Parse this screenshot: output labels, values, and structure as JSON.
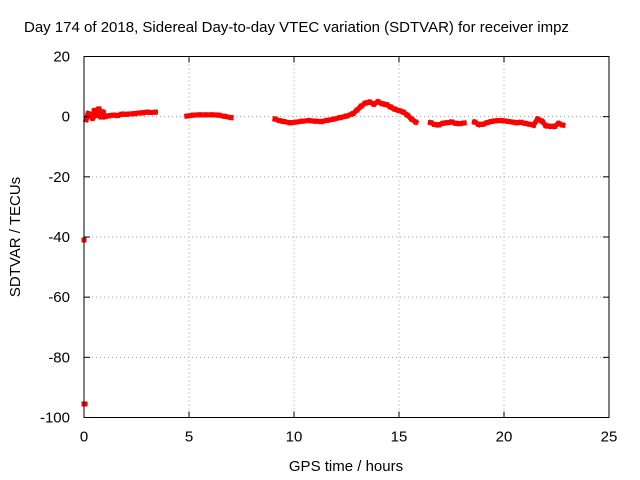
{
  "chart_data": {
    "type": "scatter",
    "title": "Day 174 of 2018, Sidereal Day-to-day VTEC variation (SDTVAR) for receiver impz",
    "xlabel": "GPS time / hours",
    "ylabel": "SDTVAR / TECUs",
    "xlim": [
      0,
      25
    ],
    "ylim": [
      -100,
      20
    ],
    "x_ticks": [
      0,
      5,
      10,
      15,
      20,
      25
    ],
    "y_ticks": [
      -100,
      -80,
      -60,
      -40,
      -20,
      0,
      20
    ],
    "x_tick_labels": [
      "0",
      "5",
      "10",
      "15",
      "20",
      "25"
    ],
    "y_tick_labels": [
      "-100",
      "-80",
      "-60",
      "-40",
      "-20",
      "0",
      "20"
    ],
    "grid": true,
    "series": [
      {
        "name": "SDTVAR",
        "color": "#ff0000",
        "points": [
          [
            0.0,
            -41
          ],
          [
            0.0,
            -95.5
          ],
          [
            0.05,
            -95.5
          ],
          [
            0.1,
            -1
          ],
          [
            0.2,
            1
          ],
          [
            0.3,
            0.5
          ],
          [
            0.4,
            -0.5
          ],
          [
            0.5,
            2
          ],
          [
            0.6,
            0.5
          ],
          [
            0.7,
            2.5
          ],
          [
            0.8,
            0
          ],
          [
            0.9,
            1.5
          ],
          [
            1.0,
            0
          ],
          [
            1.2,
            0.3
          ],
          [
            1.4,
            0.5
          ],
          [
            1.6,
            0.4
          ],
          [
            1.8,
            0.8
          ],
          [
            2.0,
            0.8
          ],
          [
            2.2,
            0.9
          ],
          [
            2.4,
            1.0
          ],
          [
            2.6,
            1.2
          ],
          [
            2.8,
            1.3
          ],
          [
            3.0,
            1.5
          ],
          [
            3.2,
            1.4
          ],
          [
            3.4,
            1.5
          ],
          [
            4.9,
            0.2
          ],
          [
            5.2,
            0.5
          ],
          [
            5.5,
            0.6
          ],
          [
            5.8,
            0.6
          ],
          [
            6.1,
            0.6
          ],
          [
            6.4,
            0.5
          ],
          [
            6.7,
            0.1
          ],
          [
            7.0,
            -0.3
          ],
          [
            9.1,
            -0.8
          ],
          [
            9.3,
            -1.3
          ],
          [
            9.5,
            -1.6
          ],
          [
            9.8,
            -2.0
          ],
          [
            10.1,
            -1.8
          ],
          [
            10.4,
            -1.5
          ],
          [
            10.7,
            -1.3
          ],
          [
            11.0,
            -1.5
          ],
          [
            11.3,
            -1.6
          ],
          [
            11.6,
            -1.2
          ],
          [
            11.9,
            -0.8
          ],
          [
            12.2,
            -0.3
          ],
          [
            12.5,
            0.2
          ],
          [
            12.8,
            1.0
          ],
          [
            13.0,
            2.2
          ],
          [
            13.2,
            3.5
          ],
          [
            13.4,
            4.5
          ],
          [
            13.6,
            4.8
          ],
          [
            13.8,
            4.2
          ],
          [
            14.0,
            4.9
          ],
          [
            14.2,
            4.3
          ],
          [
            14.4,
            4.0
          ],
          [
            14.6,
            3.2
          ],
          [
            14.8,
            2.5
          ],
          [
            15.0,
            2.0
          ],
          [
            15.2,
            1.5
          ],
          [
            15.4,
            0.5
          ],
          [
            15.6,
            -0.8
          ],
          [
            15.8,
            -1.8
          ],
          [
            16.5,
            -2.0
          ],
          [
            16.7,
            -2.6
          ],
          [
            16.9,
            -2.7
          ],
          [
            17.1,
            -2.2
          ],
          [
            17.3,
            -2.0
          ],
          [
            17.5,
            -1.8
          ],
          [
            17.7,
            -2.2
          ],
          [
            17.9,
            -2.3
          ],
          [
            18.1,
            -2.1
          ],
          [
            18.6,
            -1.8
          ],
          [
            18.8,
            -2.6
          ],
          [
            19.0,
            -2.5
          ],
          [
            19.2,
            -2.0
          ],
          [
            19.4,
            -1.6
          ],
          [
            19.6,
            -1.4
          ],
          [
            19.8,
            -1.3
          ],
          [
            20.0,
            -1.4
          ],
          [
            20.2,
            -1.6
          ],
          [
            20.4,
            -1.8
          ],
          [
            20.6,
            -2.0
          ],
          [
            20.8,
            -1.9
          ],
          [
            21.0,
            -2.2
          ],
          [
            21.2,
            -2.5
          ],
          [
            21.4,
            -2.8
          ],
          [
            21.6,
            -0.8
          ],
          [
            21.8,
            -1.5
          ],
          [
            22.0,
            -3.0
          ],
          [
            22.2,
            -3.2
          ],
          [
            22.4,
            -3.2
          ],
          [
            22.6,
            -2.3
          ],
          [
            22.8,
            -2.8
          ]
        ]
      }
    ]
  }
}
